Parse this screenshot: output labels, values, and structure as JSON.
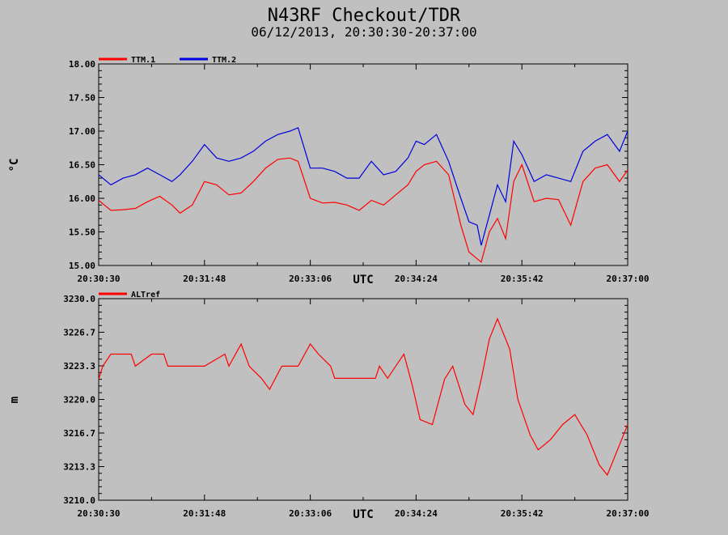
{
  "title": "N43RF Checkout/TDR",
  "subtitle": "06/12/2013, 20:30:30-20:37:00",
  "chart_data": [
    {
      "type": "line",
      "ylabel": "°C",
      "xlabel": "UTC",
      "ylim": [
        15.0,
        18.0
      ],
      "yticks": [
        "15.00",
        "15.50",
        "16.00",
        "16.50",
        "17.00",
        "17.50",
        "18.00"
      ],
      "xlim": [
        "20:30:30",
        "20:37:00"
      ],
      "xticks": [
        "20:30:30",
        "20:31:48",
        "20:33:06",
        "20:34:24",
        "20:35:42",
        "20:37:00"
      ],
      "legend_position": "top-left",
      "grid": false,
      "series": [
        {
          "name": "TTM.1",
          "color": "#ff0000",
          "x": [
            "20:30:30",
            "20:30:39",
            "20:30:48",
            "20:30:57",
            "20:31:06",
            "20:31:15",
            "20:31:24",
            "20:31:30",
            "20:31:39",
            "20:31:48",
            "20:31:57",
            "20:32:06",
            "20:32:15",
            "20:32:24",
            "20:32:33",
            "20:32:42",
            "20:32:51",
            "20:32:57",
            "20:33:06",
            "20:33:15",
            "20:33:24",
            "20:33:33",
            "20:33:42",
            "20:33:51",
            "20:34:00",
            "20:34:09",
            "20:34:18",
            "20:34:24",
            "20:34:30",
            "20:34:39",
            "20:34:48",
            "20:34:57",
            "20:35:03",
            "20:35:09",
            "20:35:12",
            "20:35:18",
            "20:35:24",
            "20:35:30",
            "20:35:36",
            "20:35:42",
            "20:35:51",
            "20:36:00",
            "20:36:09",
            "20:36:18",
            "20:36:27",
            "20:36:36",
            "20:36:45",
            "20:36:54",
            "20:37:00"
          ],
          "values": [
            15.97,
            15.82,
            15.83,
            15.85,
            15.95,
            16.03,
            15.9,
            15.78,
            15.9,
            16.25,
            16.2,
            16.05,
            16.08,
            16.25,
            16.45,
            16.58,
            16.6,
            16.55,
            16.0,
            15.93,
            15.94,
            15.9,
            15.82,
            15.97,
            15.9,
            16.05,
            16.2,
            16.4,
            16.5,
            16.55,
            16.35,
            15.6,
            15.2,
            15.1,
            15.05,
            15.5,
            15.7,
            15.4,
            16.25,
            16.5,
            15.95,
            16.0,
            15.98,
            15.6,
            16.25,
            16.45,
            16.5,
            16.25,
            16.42
          ]
        },
        {
          "name": "TTM.2",
          "color": "#0000dd",
          "x": [
            "20:30:30",
            "20:30:39",
            "20:30:48",
            "20:30:57",
            "20:31:06",
            "20:31:15",
            "20:31:24",
            "20:31:30",
            "20:31:39",
            "20:31:48",
            "20:31:57",
            "20:32:06",
            "20:32:15",
            "20:32:24",
            "20:32:33",
            "20:32:42",
            "20:32:51",
            "20:32:57",
            "20:33:06",
            "20:33:15",
            "20:33:24",
            "20:33:33",
            "20:33:42",
            "20:33:51",
            "20:34:00",
            "20:34:09",
            "20:34:18",
            "20:34:24",
            "20:34:30",
            "20:34:39",
            "20:34:48",
            "20:34:57",
            "20:35:03",
            "20:35:09",
            "20:35:12",
            "20:35:18",
            "20:35:24",
            "20:35:30",
            "20:35:36",
            "20:35:42",
            "20:35:51",
            "20:36:00",
            "20:36:09",
            "20:36:18",
            "20:36:27",
            "20:36:36",
            "20:36:45",
            "20:36:54",
            "20:37:00"
          ],
          "values": [
            16.35,
            16.2,
            16.3,
            16.35,
            16.45,
            16.35,
            16.25,
            16.35,
            16.55,
            16.8,
            16.6,
            16.55,
            16.6,
            16.7,
            16.85,
            16.95,
            17.0,
            17.05,
            16.45,
            16.45,
            16.4,
            16.3,
            16.3,
            16.55,
            16.35,
            16.4,
            16.6,
            16.85,
            16.8,
            16.95,
            16.55,
            16.0,
            15.65,
            15.6,
            15.3,
            15.75,
            16.2,
            15.95,
            16.85,
            16.65,
            16.25,
            16.35,
            16.3,
            16.25,
            16.7,
            16.85,
            16.95,
            16.7,
            17.0
          ]
        }
      ]
    },
    {
      "type": "line",
      "ylabel": "m",
      "xlabel": "UTC",
      "ylim": [
        3210.0,
        3230.0
      ],
      "yticks": [
        "3210.0",
        "3213.3",
        "3216.7",
        "3220.0",
        "3223.3",
        "3226.7",
        "3230.0"
      ],
      "xlim": [
        "20:30:30",
        "20:37:00"
      ],
      "xticks": [
        "20:30:30",
        "20:31:48",
        "20:33:06",
        "20:34:24",
        "20:35:42",
        "20:37:00"
      ],
      "legend_position": "top-left",
      "grid": false,
      "series": [
        {
          "name": "ALTref",
          "color": "#ff0000",
          "x": [
            "20:30:30",
            "20:30:33",
            "20:30:39",
            "20:30:54",
            "20:30:57",
            "20:31:09",
            "20:31:18",
            "20:31:21",
            "20:31:48",
            "20:32:03",
            "20:32:06",
            "20:32:15",
            "20:32:21",
            "20:32:30",
            "20:32:36",
            "20:32:45",
            "20:32:57",
            "20:33:06",
            "20:33:12",
            "20:33:21",
            "20:33:24",
            "20:33:36",
            "20:33:54",
            "20:33:57",
            "20:34:03",
            "20:34:09",
            "20:34:15",
            "20:34:21",
            "20:34:27",
            "20:34:36",
            "20:34:45",
            "20:34:51",
            "20:35:00",
            "20:35:06",
            "20:35:12",
            "20:35:18",
            "20:35:24",
            "20:35:33",
            "20:35:39",
            "20:35:48",
            "20:35:54",
            "20:36:03",
            "20:36:12",
            "20:36:21",
            "20:36:30",
            "20:36:39",
            "20:36:45",
            "20:37:00"
          ],
          "values": [
            3222.0,
            3223.3,
            3224.5,
            3224.5,
            3223.3,
            3224.5,
            3224.5,
            3223.3,
            3223.3,
            3224.5,
            3223.3,
            3225.5,
            3223.3,
            3222.1,
            3221.0,
            3223.3,
            3223.3,
            3225.5,
            3224.5,
            3223.3,
            3222.1,
            3222.1,
            3222.1,
            3223.3,
            3222.1,
            3223.3,
            3224.5,
            3221.5,
            3218.0,
            3217.5,
            3222.0,
            3223.3,
            3219.5,
            3218.5,
            3222.0,
            3226.0,
            3228.0,
            3225.0,
            3220.0,
            3216.5,
            3215.0,
            3216.0,
            3217.5,
            3218.5,
            3216.5,
            3213.5,
            3212.5,
            3217.5
          ]
        }
      ]
    }
  ]
}
